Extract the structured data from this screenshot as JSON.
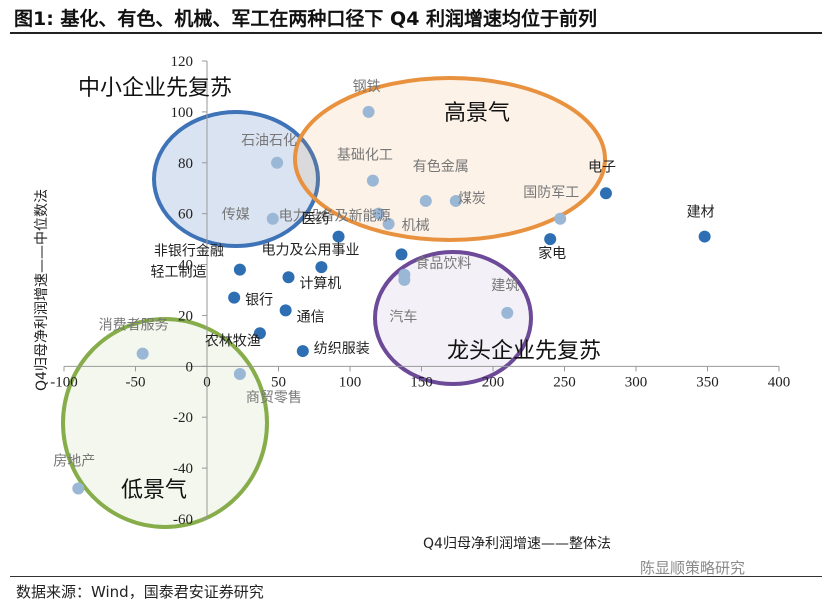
{
  "title": "图1:  基化、有色、机械、军工在两种口径下 Q4 利润增速均位于前列",
  "source": "数据来源：Wind，国泰君安证券研究",
  "watermark": "陈显顺策略研究",
  "colors": {
    "dark_point": "#2e6fb3",
    "light_point": "#9ab7d6",
    "blue_ellipse": "#3f73b8",
    "orange_ellipse": "#e8913f",
    "purple_ellipse": "#6c4a98",
    "green_ellipse": "#86ad4a"
  },
  "chart_data": {
    "type": "scatter",
    "xlabel": "Q4归母净利润增速——整体法",
    "ylabel": "Q4归母净利润增速——中位数法",
    "xlim": [
      -100,
      400
    ],
    "ylim": [
      -60,
      120
    ],
    "xticks": [
      -100,
      -50,
      0,
      50,
      100,
      150,
      200,
      250,
      300,
      350,
      400
    ],
    "yticks": [
      -60,
      -40,
      -20,
      0,
      20,
      40,
      60,
      80,
      100,
      120
    ],
    "group_labels": [
      "中小企业先复苏",
      "高景气",
      "龙头企业先复苏",
      "低景气"
    ],
    "points": [
      {
        "name": "钢铁",
        "x": 113,
        "y": 100,
        "shade": "light"
      },
      {
        "name": "石油石化",
        "x": 49,
        "y": 80,
        "shade": "light"
      },
      {
        "name": "基础化工",
        "x": 116,
        "y": 73,
        "shade": "light"
      },
      {
        "name": "有色金属",
        "x": 153,
        "y": 65,
        "shade": "light"
      },
      {
        "name": "煤炭",
        "x": 174,
        "y": 65,
        "shade": "light"
      },
      {
        "name": "电子",
        "x": 279,
        "y": 68,
        "shade": "dark"
      },
      {
        "name": "国防军工",
        "x": 247,
        "y": 58,
        "shade": "light"
      },
      {
        "name": "电力设备及新能源",
        "x": 120,
        "y": 60,
        "shade": "light"
      },
      {
        "name": "机械",
        "x": 127,
        "y": 56,
        "shade": "light"
      },
      {
        "name": "传媒",
        "x": 46,
        "y": 58,
        "shade": "light"
      },
      {
        "name": "建材",
        "x": 348,
        "y": 51,
        "shade": "dark"
      },
      {
        "name": "医药",
        "x": 92,
        "y": 51,
        "shade": "dark"
      },
      {
        "name": "家电",
        "x": 240,
        "y": 50,
        "shade": "dark"
      },
      {
        "name": "电力及公用事业",
        "x": 136,
        "y": 44,
        "shade": "dark"
      },
      {
        "name": "非银行金融",
        "x": 23,
        "y": 38,
        "shade": "dark"
      },
      {
        "name": "食品饮料",
        "x": 138,
        "y": 34,
        "shade": "light"
      },
      {
        "name": "计算机",
        "x": 80,
        "y": 39,
        "shade": "dark"
      },
      {
        "name": "轻工制造",
        "x": 57,
        "y": 35,
        "shade": "dark"
      },
      {
        "name": "银行",
        "x": 19,
        "y": 27,
        "shade": "dark"
      },
      {
        "name": "建筑",
        "x": 210,
        "y": 21,
        "shade": "light"
      },
      {
        "name": "汽车",
        "x": 138,
        "y": 36,
        "shade": "light"
      },
      {
        "name": "通信",
        "x": 55,
        "y": 22,
        "shade": "dark"
      },
      {
        "name": "消费者服务",
        "x": -45,
        "y": 5,
        "shade": "light"
      },
      {
        "name": "农林牧渔",
        "x": 37,
        "y": 13,
        "shade": "dark"
      },
      {
        "name": "纺织服装",
        "x": 67,
        "y": 6,
        "shade": "dark"
      },
      {
        "name": "商贸零售",
        "x": 23,
        "y": -3,
        "shade": "light"
      },
      {
        "name": "房地产",
        "x": -90,
        "y": -48,
        "shade": "light"
      }
    ]
  }
}
